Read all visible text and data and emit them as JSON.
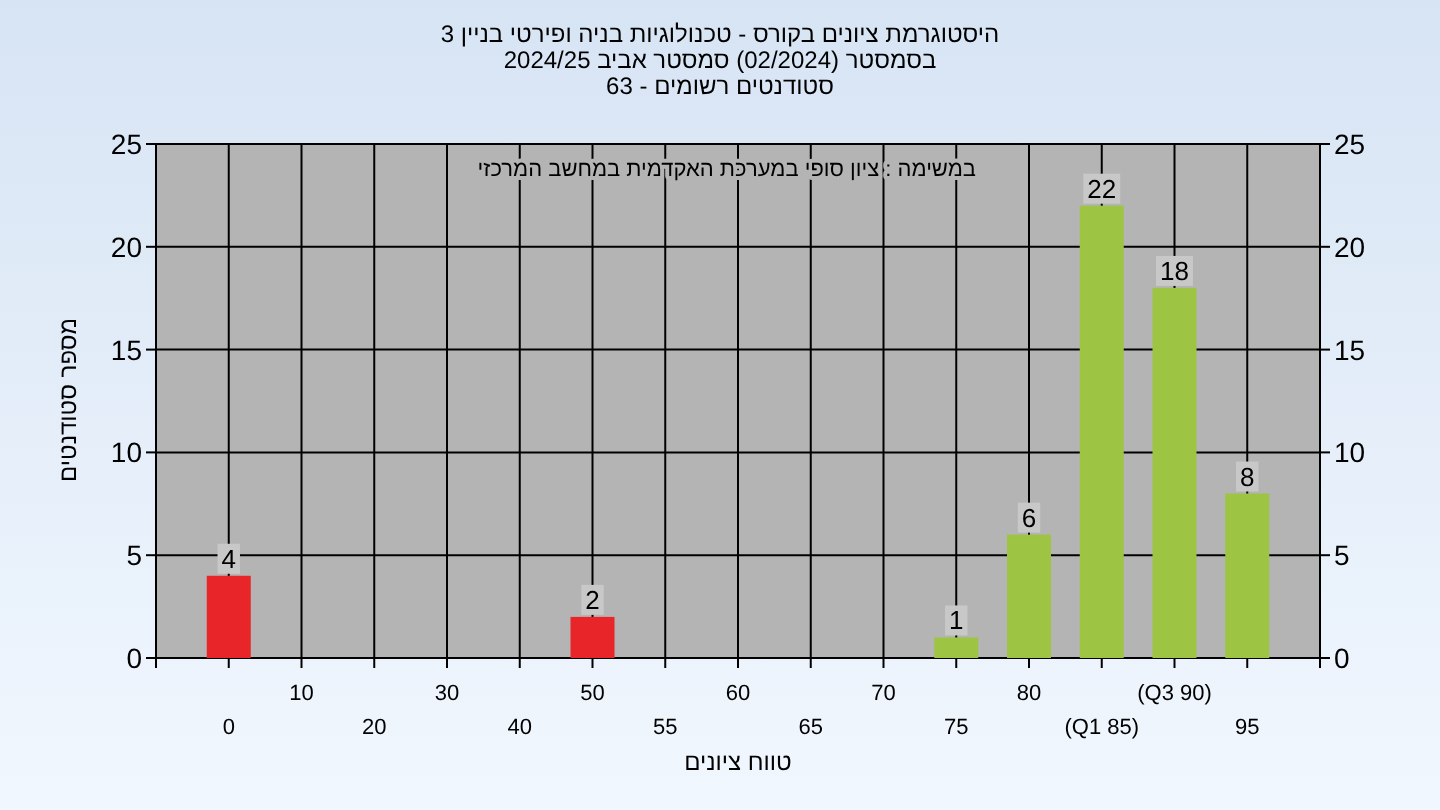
{
  "chart_data": {
    "type": "bar",
    "title": "היסטוגרמת ציונים בקורס - טכנולוגיות בניה ופירטי בניין 3",
    "subtitle": "בסמסטר  (02/2024)  סמסטר אביב 2024/25",
    "annotations": [
      "סטודנטים רשומים - 63",
      "במשימה : ציון סופי במערכת האקדמית במחשב המרכזי"
    ],
    "xlabel": "טווח ציונים",
    "ylabel": "מספר סטודנטים",
    "categories": [
      "0",
      "10",
      "20",
      "30",
      "40",
      "50",
      "55",
      "60",
      "65",
      "70",
      "75",
      "80",
      "(Q1 85)",
      "(Q3 90)",
      "95"
    ],
    "values": [
      4,
      null,
      null,
      null,
      null,
      2,
      null,
      null,
      null,
      null,
      1,
      6,
      22,
      18,
      8
    ],
    "value_labels": [
      "4",
      null,
      null,
      null,
      null,
      "2",
      null,
      null,
      null,
      null,
      "1",
      "6",
      "22",
      "18",
      "8"
    ],
    "colors": [
      "#e8262a",
      null,
      null,
      null,
      null,
      "#e8262a",
      null,
      null,
      null,
      null,
      "#9dc443",
      "#9dc443",
      "#9dc443",
      "#9dc443",
      "#9dc443"
    ],
    "ylim": [
      0,
      25
    ],
    "yticks": [
      0,
      5,
      10,
      15,
      20,
      25
    ],
    "y2lim": [
      0,
      25
    ],
    "y2ticks": [
      0,
      5,
      10,
      15,
      20,
      25
    ],
    "grid": true
  }
}
